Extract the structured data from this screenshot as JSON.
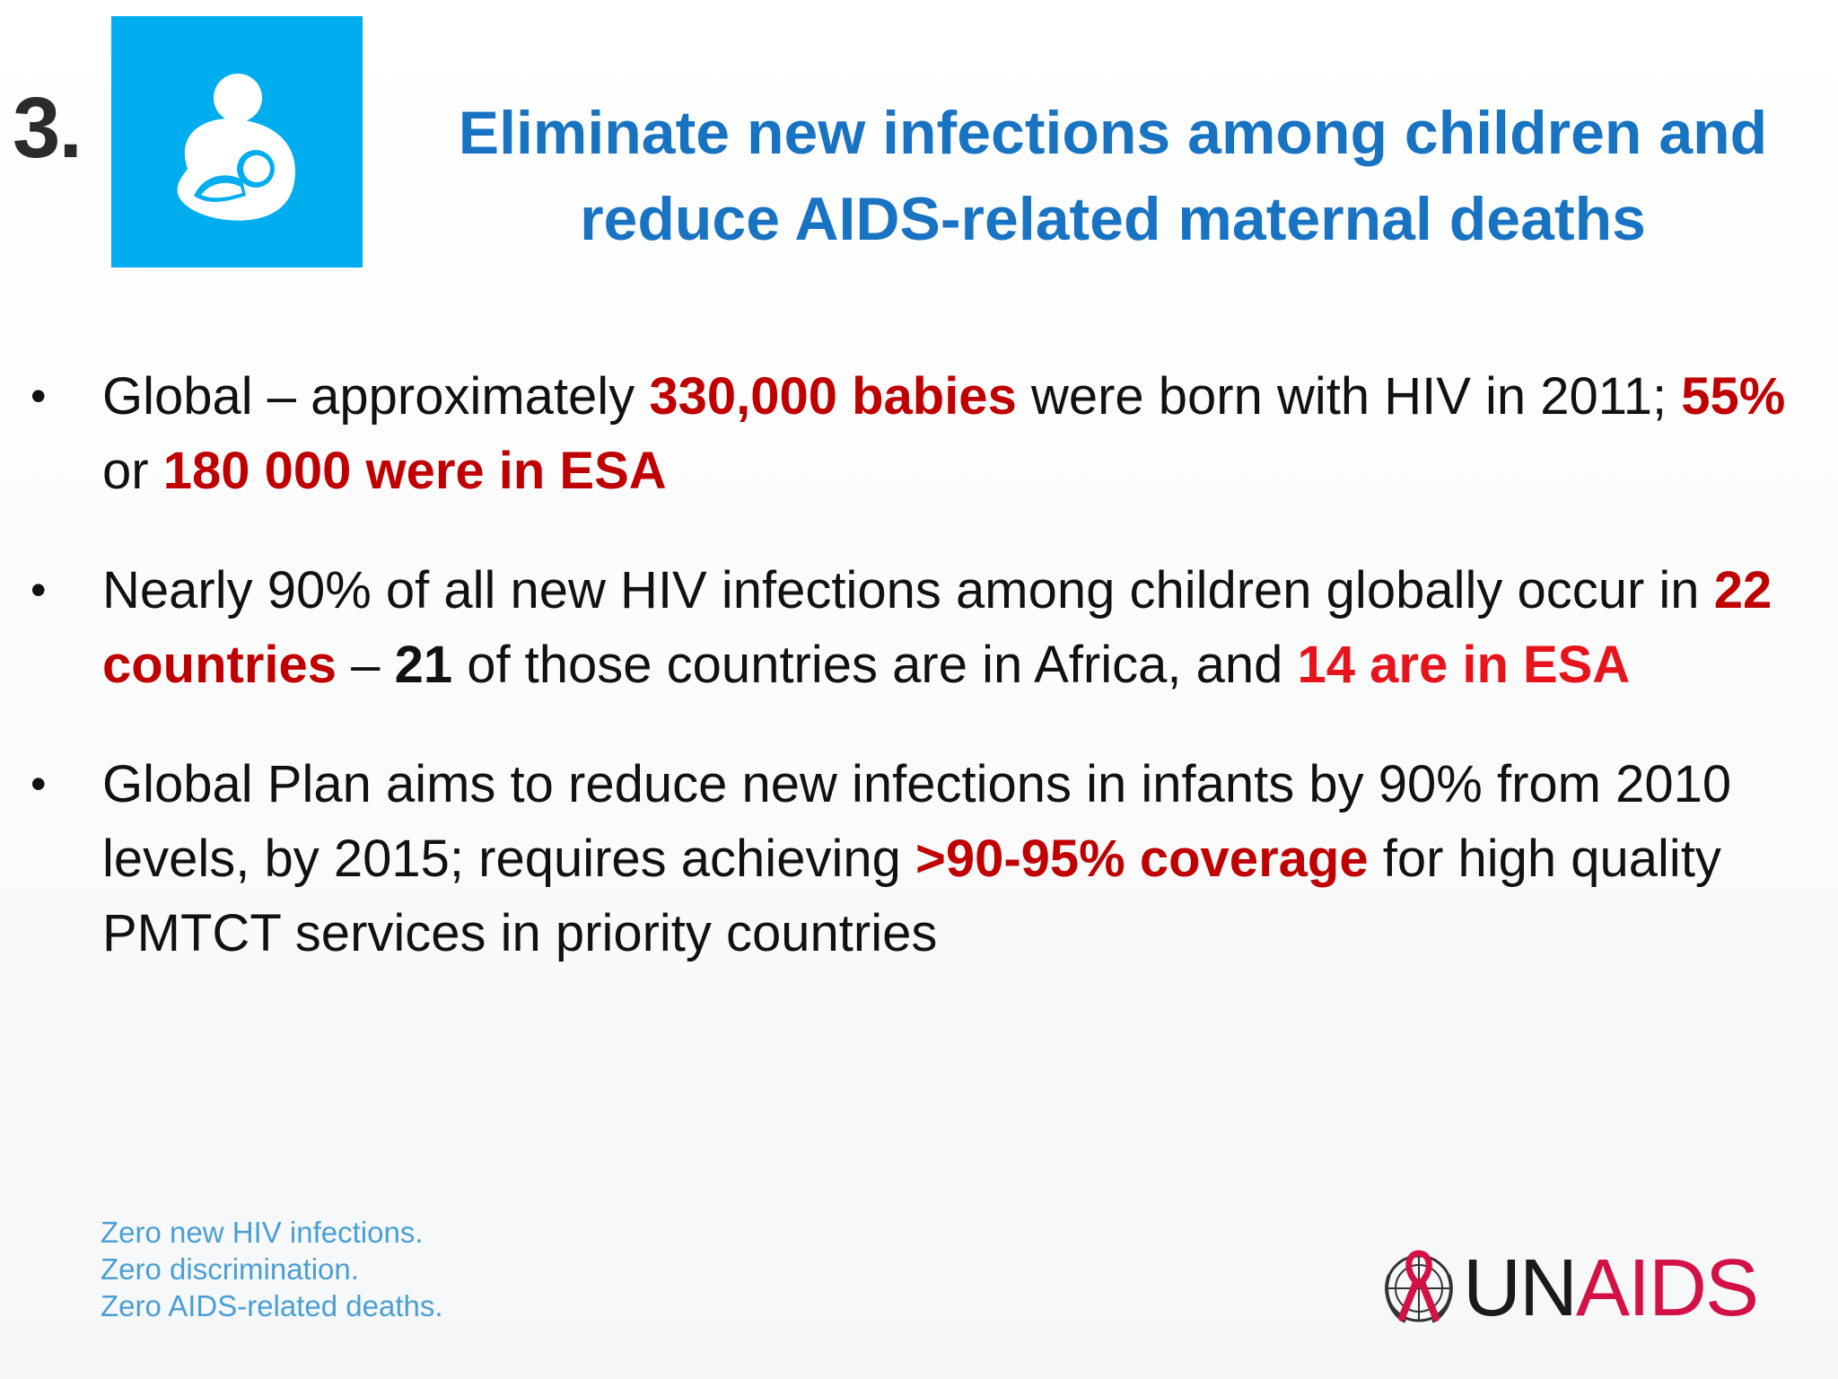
{
  "slide": {
    "number": "3.",
    "icon": "mother-breastfeeding-icon",
    "title_lines": [
      "Eliminate new infections among children and",
      "reduce AIDS-related maternal deaths"
    ],
    "bullets": [
      {
        "segments": [
          "Global – approximately ",
          "330,000 babies",
          " were born with HIV in 2011; ",
          "55%",
          " or ",
          "180 000 were in ESA"
        ]
      },
      {
        "segments": [
          "Nearly 90% of all new HIV infections among children globally occur in ",
          "22 countries",
          " – ",
          "21",
          " of those countries are in Africa, and ",
          "14 are in ESA"
        ]
      },
      {
        "segments": [
          "Global Plan aims to reduce new infections in infants by 90% from 2010 levels, by 2015; requires achieving ",
          ">90-95% coverage",
          " for high quality PMTCT services in priority countries"
        ]
      }
    ],
    "tagline": [
      "Zero new HIV infections.",
      "Zero discrimination.",
      "Zero AIDS-related deaths."
    ],
    "logo": {
      "un": "UN",
      "aids": "AIDS",
      "emblem": "un-emblem-red-ribbon-icon"
    },
    "colors": {
      "title_blue": "#1873c2",
      "icon_bg": "#00aeef",
      "highlight_red": "#c00000",
      "highlight_bright_red": "#e8141c",
      "tagline_blue": "#4a9fd5",
      "logo_red": "#d31145"
    }
  }
}
